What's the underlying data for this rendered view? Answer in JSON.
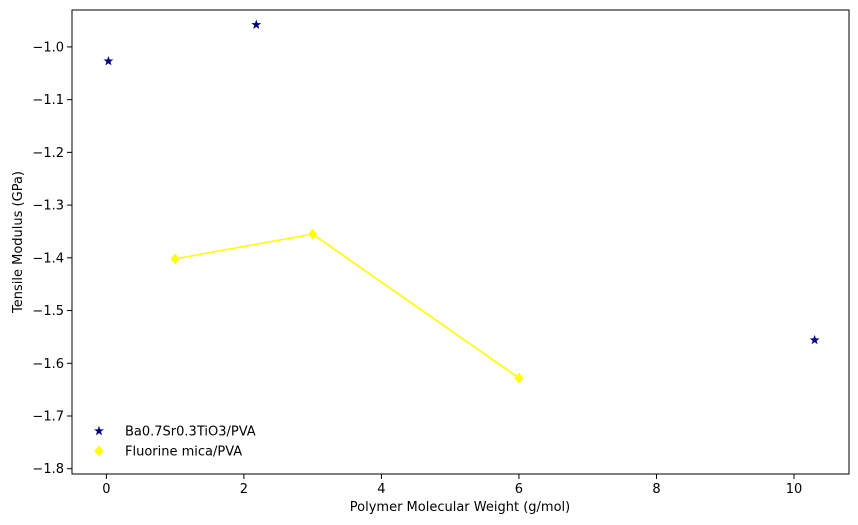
{
  "chart_data": {
    "type": "scatter",
    "title": "",
    "xlabel": "Polymer Molecular Weight (g/mol)",
    "ylabel": "Tensile Modulus (GPa)",
    "xlim": [
      -0.5,
      10.8
    ],
    "ylim": [
      -1.81,
      -0.93
    ],
    "xticks": [
      0,
      2,
      4,
      6,
      8,
      10
    ],
    "yticks": [
      -1.8,
      -1.7,
      -1.6,
      -1.5,
      -1.4,
      -1.3,
      -1.2,
      -1.1,
      -1.0
    ],
    "xtick_labels": [
      "0",
      "2",
      "4",
      "6",
      "8",
      "10"
    ],
    "ytick_labels": [
      "−1.8",
      "−1.7",
      "−1.6",
      "−1.5",
      "−1.4",
      "−1.3",
      "−1.2",
      "−1.1",
      "−1.0"
    ],
    "grid": false,
    "legend_position": "lower-left",
    "series": [
      {
        "name": "Ba0.7Sr0.3TiO3/PVA",
        "marker": "star",
        "line": false,
        "color": "#000080",
        "points": [
          {
            "x": 0.03,
            "y": -1.027
          },
          {
            "x": 2.18,
            "y": -0.958
          },
          {
            "x": 10.3,
            "y": -1.556
          }
        ]
      },
      {
        "name": "Fluorine mica/PVA",
        "marker": "diamond",
        "line": true,
        "color": "#ffff00",
        "points": [
          {
            "x": 1.0,
            "y": -1.402
          },
          {
            "x": 3.0,
            "y": -1.355
          },
          {
            "x": 6.0,
            "y": -1.628
          }
        ]
      }
    ]
  }
}
